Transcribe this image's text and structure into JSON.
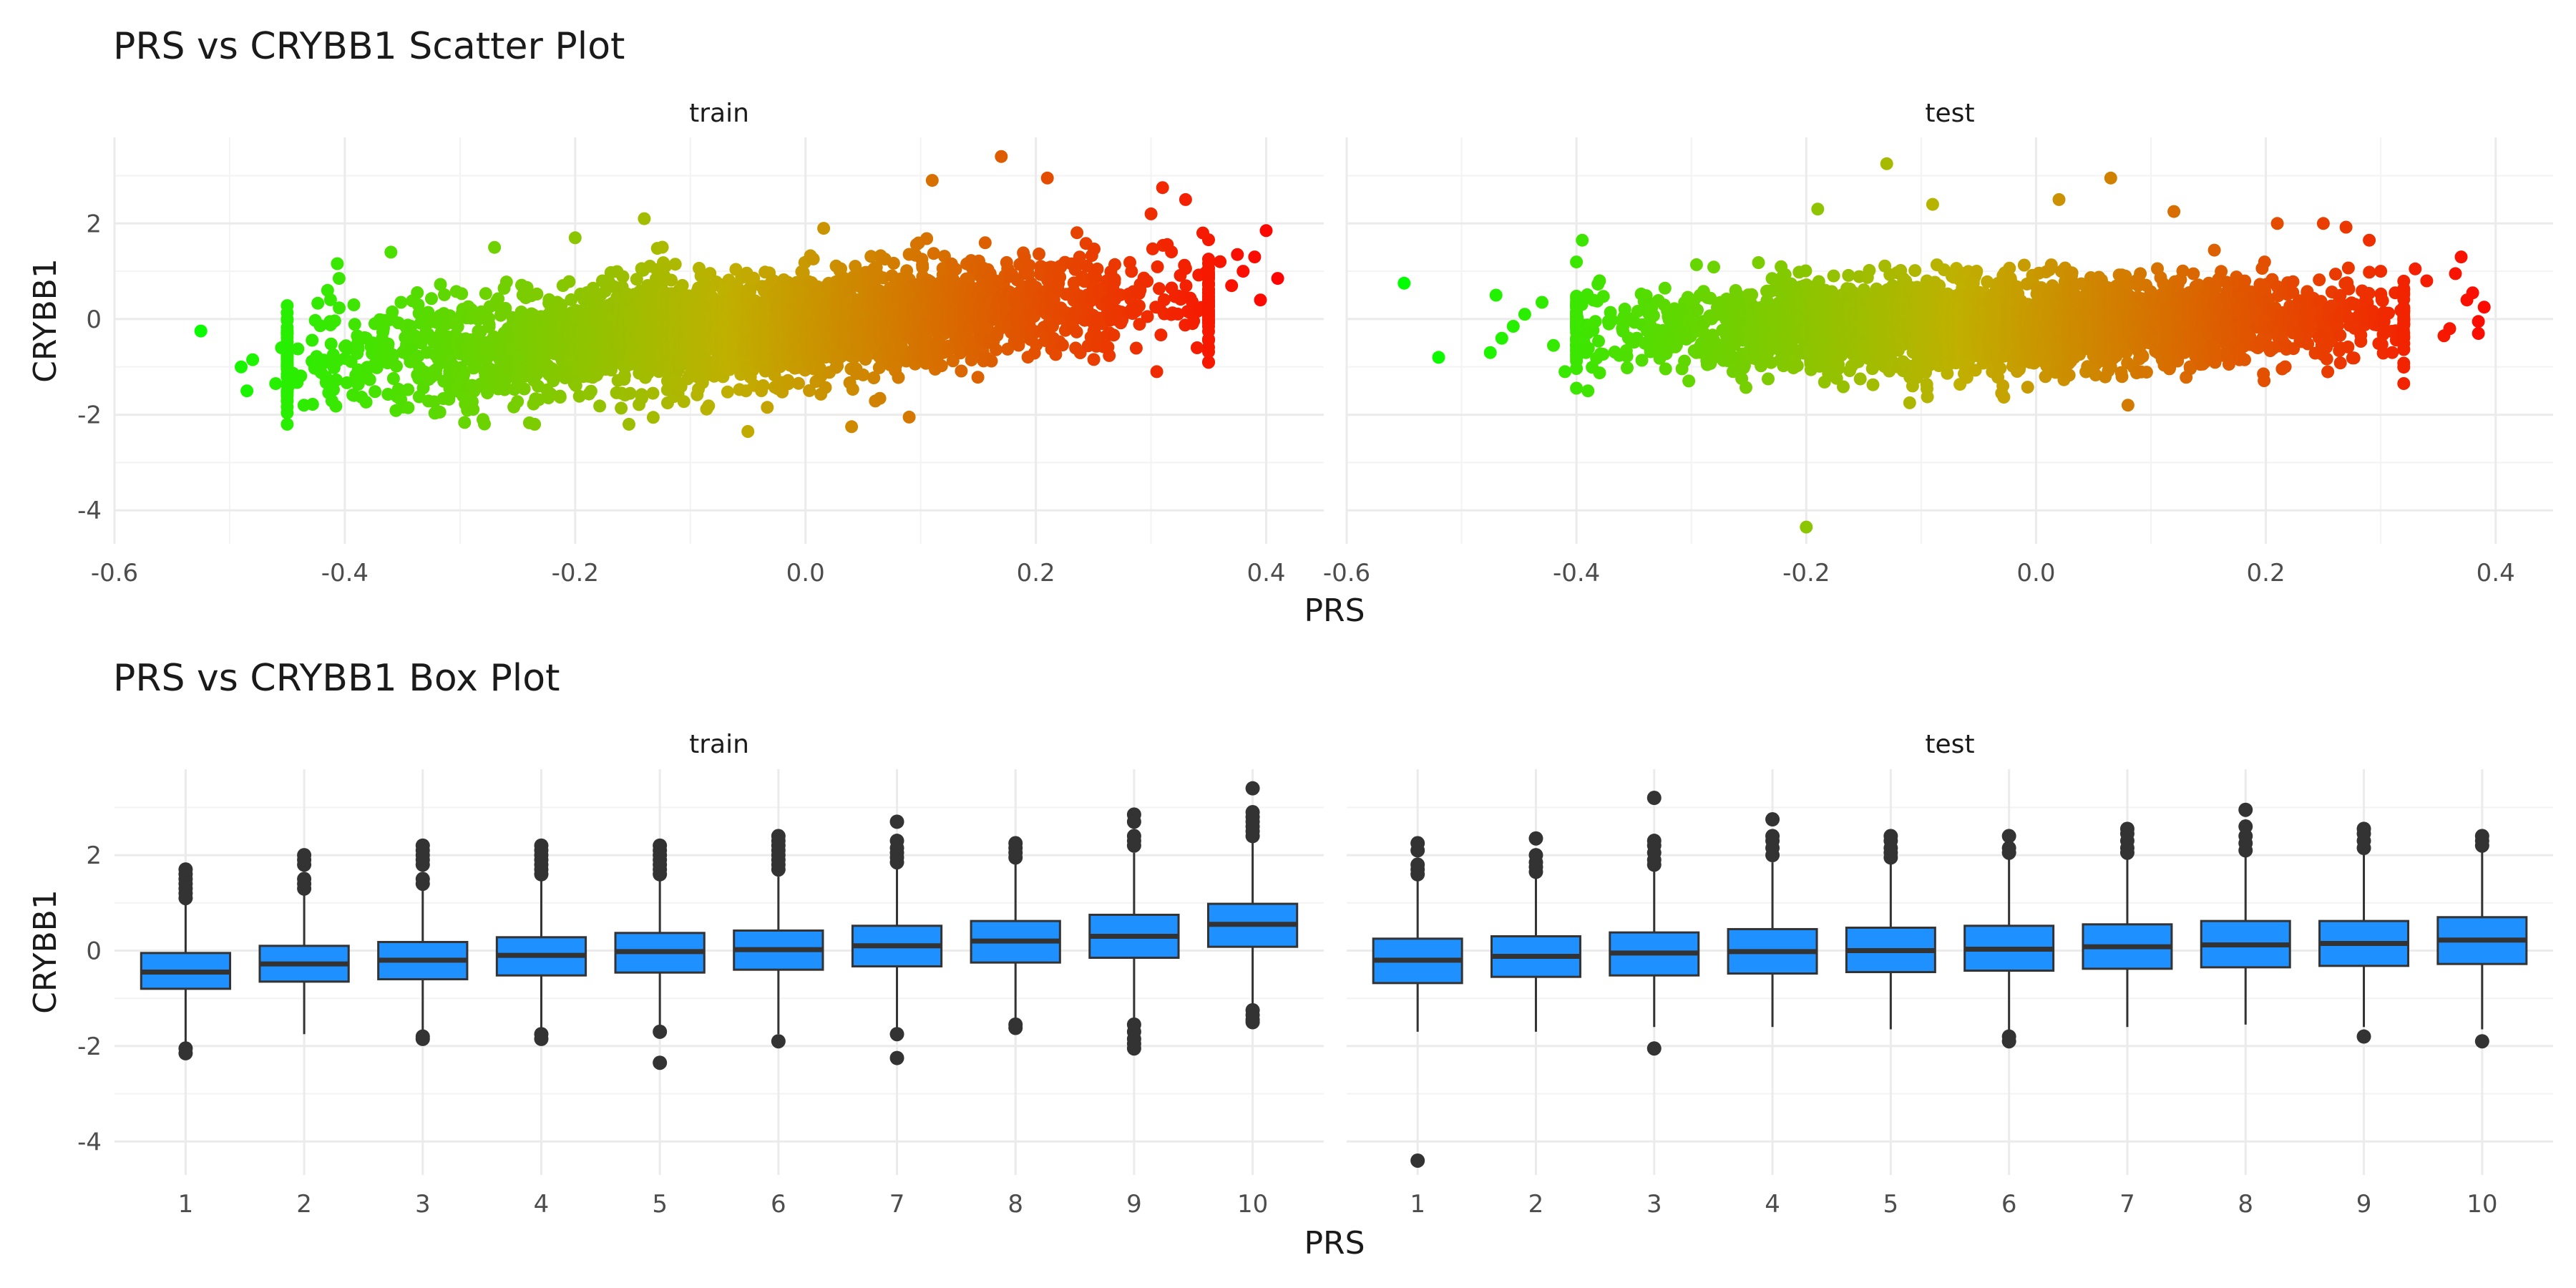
{
  "chart_data": [
    {
      "type": "scatter",
      "title": "PRS vs CRYBB1 Scatter Plot",
      "xlabel": "PRS",
      "ylabel": "CRYBB1",
      "facets": [
        "train",
        "test"
      ],
      "xlim": [
        -0.6,
        0.45
      ],
      "ylim": [
        -4.7,
        3.8
      ],
      "xticks": [
        -0.6,
        -0.4,
        -0.2,
        0.0,
        0.2,
        0.4
      ],
      "xtick_labels": [
        "-0.6",
        "-0.4",
        "-0.2",
        "0.0",
        "0.2",
        "0.4"
      ],
      "yticks": [
        -4,
        -2,
        0,
        2
      ],
      "ytick_labels": [
        "-4",
        "-2",
        "0",
        "2"
      ],
      "grid": true,
      "color_gradient": {
        "low": "#00ff00",
        "mid": "#c0b000",
        "high": "#ff0000",
        "domain": [
          -0.55,
          0.42
        ]
      },
      "panels": [
        {
          "name": "train",
          "prs_range": [
            -0.45,
            0.35
          ],
          "slope": 2.3,
          "spread": 0.55,
          "points": [
            [
              -0.525,
              -0.25
            ],
            [
              -0.49,
              -1.0
            ],
            [
              -0.48,
              -0.85
            ],
            [
              -0.485,
              -1.5
            ],
            [
              -0.46,
              -1.35
            ],
            [
              -0.455,
              -0.6
            ],
            [
              -0.445,
              -1.3
            ],
            [
              -0.42,
              -0.95
            ],
            [
              -0.415,
              0.6
            ],
            [
              -0.405,
              0.85
            ],
            [
              -0.36,
              1.4
            ],
            [
              -0.28,
              -2.1
            ],
            [
              -0.27,
              1.5
            ],
            [
              -0.2,
              1.7
            ],
            [
              -0.14,
              2.1
            ],
            [
              -0.05,
              -2.35
            ],
            [
              0.04,
              -2.25
            ],
            [
              0.09,
              -2.05
            ],
            [
              0.11,
              2.9
            ],
            [
              0.17,
              3.4
            ],
            [
              0.21,
              2.95
            ],
            [
              0.31,
              2.75
            ],
            [
              0.33,
              2.5
            ],
            [
              0.345,
              1.8
            ],
            [
              0.36,
              1.2
            ],
            [
              0.38,
              1.0
            ],
            [
              0.39,
              1.3
            ],
            [
              0.395,
              0.4
            ],
            [
              0.4,
              1.85
            ],
            [
              0.41,
              0.85
            ],
            [
              0.37,
              0.7
            ],
            [
              0.375,
              1.35
            ],
            [
              0.34,
              -0.6
            ],
            [
              0.305,
              -1.1
            ],
            [
              0.3,
              2.2
            ]
          ]
        },
        {
          "name": "test",
          "prs_range": [
            -0.4,
            0.32
          ],
          "slope": 1.0,
          "spread": 0.45,
          "points": [
            [
              -0.55,
              0.75
            ],
            [
              -0.52,
              -0.8
            ],
            [
              -0.475,
              -0.7
            ],
            [
              -0.47,
              0.5
            ],
            [
              -0.465,
              -0.4
            ],
            [
              -0.455,
              -0.15
            ],
            [
              -0.445,
              0.1
            ],
            [
              -0.43,
              0.35
            ],
            [
              -0.42,
              -0.55
            ],
            [
              -0.41,
              -1.1
            ],
            [
              -0.395,
              1.65
            ],
            [
              -0.39,
              -1.5
            ],
            [
              -0.2,
              -4.35
            ],
            [
              -0.13,
              3.25
            ],
            [
              -0.19,
              2.3
            ],
            [
              -0.09,
              2.4
            ],
            [
              0.065,
              2.95
            ],
            [
              0.02,
              2.5
            ],
            [
              0.12,
              2.25
            ],
            [
              0.21,
              2.0
            ],
            [
              0.25,
              2.0
            ],
            [
              0.29,
              1.65
            ],
            [
              0.3,
              1.0
            ],
            [
              0.305,
              -0.25
            ],
            [
              0.31,
              -0.7
            ],
            [
              0.33,
              1.05
            ],
            [
              0.34,
              0.8
            ],
            [
              0.355,
              -0.35
            ],
            [
              0.365,
              0.95
            ],
            [
              0.37,
              1.3
            ],
            [
              0.375,
              0.4
            ],
            [
              0.38,
              0.55
            ],
            [
              0.385,
              -0.05
            ],
            [
              0.39,
              0.25
            ],
            [
              0.385,
              -0.3
            ],
            [
              0.36,
              -0.2
            ],
            [
              -0.03,
              -1.55
            ],
            [
              -0.11,
              -1.75
            ],
            [
              0.08,
              -1.8
            ]
          ]
        }
      ]
    },
    {
      "type": "box",
      "title": "PRS vs CRYBB1 Box Plot",
      "xlabel": "PRS",
      "ylabel": "CRYBB1",
      "facets": [
        "train",
        "test"
      ],
      "categories": [
        "1",
        "2",
        "3",
        "4",
        "5",
        "6",
        "7",
        "8",
        "9",
        "10"
      ],
      "ylim": [
        -4.7,
        3.8
      ],
      "yticks": [
        -4,
        -2,
        0,
        2
      ],
      "ytick_labels": [
        "-4",
        "-2",
        "0",
        "2"
      ],
      "box_color": "#1e90ff",
      "grid": true,
      "panels": [
        {
          "name": "train",
          "boxes": [
            {
              "q1": -0.8,
              "median": -0.45,
              "q3": -0.05,
              "whisker_low": -1.95,
              "whisker_high": 1.05,
              "outliers": [
                1.1,
                1.2,
                1.3,
                1.4,
                1.5,
                1.6,
                1.7,
                -2.05,
                -2.15
              ]
            },
            {
              "q1": -0.65,
              "median": -0.28,
              "q3": 0.1,
              "whisker_low": -1.75,
              "whisker_high": 1.25,
              "outliers": [
                1.3,
                1.4,
                1.5,
                1.8,
                1.9,
                2.0
              ]
            },
            {
              "q1": -0.6,
              "median": -0.2,
              "q3": 0.18,
              "whisker_low": -1.75,
              "whisker_high": 1.35,
              "outliers": [
                1.4,
                1.5,
                1.8,
                1.9,
                2.0,
                2.1,
                2.2,
                -1.8,
                -1.85
              ]
            },
            {
              "q1": -0.52,
              "median": -0.1,
              "q3": 0.28,
              "whisker_low": -1.7,
              "whisker_high": 1.5,
              "outliers": [
                1.6,
                1.7,
                1.8,
                1.9,
                2.0,
                2.1,
                2.2,
                -1.75,
                -1.85
              ]
            },
            {
              "q1": -0.46,
              "median": -0.02,
              "q3": 0.37,
              "whisker_low": -1.65,
              "whisker_high": 1.5,
              "outliers": [
                1.6,
                1.7,
                1.8,
                1.9,
                2.0,
                2.1,
                2.2,
                -1.7,
                -2.35
              ]
            },
            {
              "q1": -0.4,
              "median": 0.02,
              "q3": 0.42,
              "whisker_low": -1.75,
              "whisker_high": 1.55,
              "outliers": [
                1.7,
                1.8,
                1.9,
                2.0,
                2.1,
                2.2,
                2.3,
                2.4,
                -1.9
              ]
            },
            {
              "q1": -0.33,
              "median": 0.1,
              "q3": 0.52,
              "whisker_low": -1.65,
              "whisker_high": 1.75,
              "outliers": [
                1.85,
                1.95,
                2.05,
                2.15,
                2.3,
                2.7,
                -1.75,
                -2.25
              ]
            },
            {
              "q1": -0.25,
              "median": 0.2,
              "q3": 0.62,
              "whisker_low": -1.5,
              "whisker_high": 1.85,
              "outliers": [
                1.95,
                2.05,
                2.15,
                2.25,
                -1.55,
                -1.62
              ]
            },
            {
              "q1": -0.15,
              "median": 0.3,
              "q3": 0.75,
              "whisker_low": -1.45,
              "whisker_high": 2.05,
              "outliers": [
                2.2,
                2.3,
                2.4,
                2.7,
                2.85,
                -1.55,
                -1.7,
                -1.85,
                -1.95,
                -2.05
              ]
            },
            {
              "q1": 0.08,
              "median": 0.55,
              "q3": 0.98,
              "whisker_low": -1.2,
              "whisker_high": 2.3,
              "outliers": [
                2.4,
                2.5,
                2.6,
                2.7,
                2.8,
                2.9,
                3.4,
                -1.25,
                -1.35,
                -1.45,
                -1.5
              ]
            }
          ]
        },
        {
          "name": "test",
          "boxes": [
            {
              "q1": -0.68,
              "median": -0.2,
              "q3": 0.25,
              "whisker_low": -1.7,
              "whisker_high": 1.5,
              "outliers": [
                1.6,
                1.7,
                1.8,
                2.1,
                2.25,
                -4.4
              ]
            },
            {
              "q1": -0.55,
              "median": -0.12,
              "q3": 0.3,
              "whisker_low": -1.7,
              "whisker_high": 1.55,
              "outliers": [
                1.65,
                1.75,
                1.85,
                2.0,
                2.35
              ]
            },
            {
              "q1": -0.52,
              "median": -0.05,
              "q3": 0.38,
              "whisker_low": -1.6,
              "whisker_high": 1.7,
              "outliers": [
                1.8,
                1.9,
                2.05,
                2.2,
                2.3,
                3.2,
                -2.05
              ]
            },
            {
              "q1": -0.48,
              "median": -0.02,
              "q3": 0.45,
              "whisker_low": -1.6,
              "whisker_high": 1.85,
              "outliers": [
                2.0,
                2.15,
                2.3,
                2.4,
                2.75
              ]
            },
            {
              "q1": -0.45,
              "median": 0.0,
              "q3": 0.48,
              "whisker_low": -1.65,
              "whisker_high": 1.85,
              "outliers": [
                1.95,
                2.05,
                2.15,
                2.3,
                2.4
              ]
            },
            {
              "q1": -0.42,
              "median": 0.03,
              "q3": 0.52,
              "whisker_low": -1.75,
              "whisker_high": 1.95,
              "outliers": [
                2.05,
                2.15,
                2.4,
                -1.8,
                -1.9
              ]
            },
            {
              "q1": -0.38,
              "median": 0.08,
              "q3": 0.55,
              "whisker_low": -1.6,
              "whisker_high": 1.95,
              "outliers": [
                2.05,
                2.15,
                2.3,
                2.45,
                2.55
              ]
            },
            {
              "q1": -0.35,
              "median": 0.12,
              "q3": 0.62,
              "whisker_low": -1.55,
              "whisker_high": 2.0,
              "outliers": [
                2.1,
                2.25,
                2.4,
                2.6,
                2.95
              ]
            },
            {
              "q1": -0.32,
              "median": 0.15,
              "q3": 0.62,
              "whisker_low": -1.6,
              "whisker_high": 2.05,
              "outliers": [
                2.15,
                2.3,
                2.45,
                2.55,
                -1.8
              ]
            },
            {
              "q1": -0.28,
              "median": 0.22,
              "q3": 0.7,
              "whisker_low": -1.65,
              "whisker_high": 2.1,
              "outliers": [
                2.2,
                2.3,
                2.4,
                -1.9
              ]
            }
          ]
        }
      ]
    }
  ]
}
